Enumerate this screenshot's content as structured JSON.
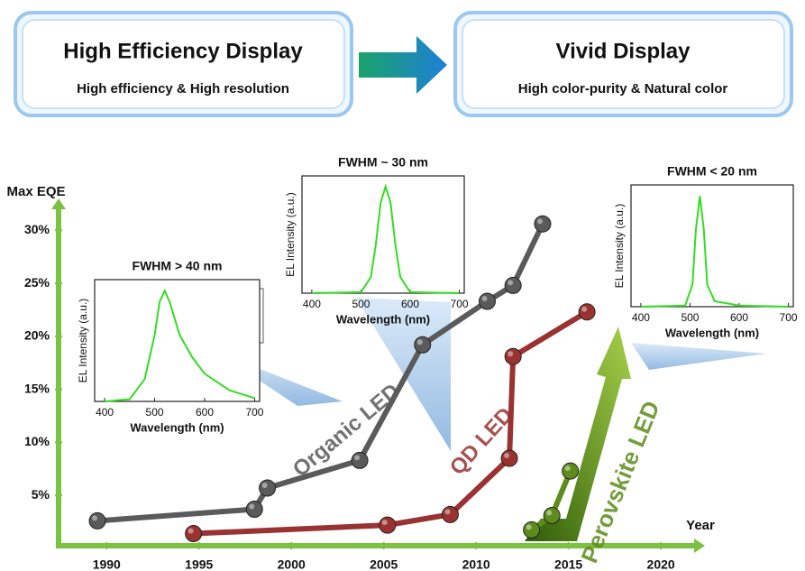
{
  "header": {
    "boxes": [
      {
        "title": "High Efficiency Display",
        "subtitle": "High efficiency & High resolution"
      },
      {
        "title": "Vivid Display",
        "subtitle": "High color-purity & Natural color"
      }
    ]
  },
  "chart_data": [
    {
      "type": "line",
      "ylabel": "Max EQE",
      "xlabel": "Year",
      "xlim": [
        1987.4,
        2021.8
      ],
      "xticks": [
        1990,
        1995,
        2000,
        2005,
        2010,
        2015,
        2020
      ],
      "ylim": [
        0,
        33
      ],
      "yticks": [
        {
          "value": 5,
          "label": "5%"
        },
        {
          "value": 10,
          "label": "10%"
        },
        {
          "value": 15,
          "label": "15%"
        },
        {
          "value": 20,
          "label": "20%"
        },
        {
          "value": 25,
          "label": "25%"
        },
        {
          "value": 30,
          "label": "30%"
        }
      ],
      "series": [
        {
          "name": "Organic LED",
          "color": "#5a5a5a",
          "x": [
            1989.5,
            1998.0,
            1998.7,
            2003.7,
            2007.1,
            2010.6,
            2012.0,
            2013.6
          ],
          "values": [
            2.6,
            3.7,
            5.7,
            8.3,
            19.2,
            23.3,
            24.8,
            30.6
          ]
        },
        {
          "name": "QD LED",
          "color": "#9b3232",
          "x": [
            1994.7,
            2005.2,
            2008.6,
            2011.8,
            2012.0,
            2016.0
          ],
          "values": [
            1.4,
            2.2,
            3.2,
            8.5,
            18.1,
            22.3
          ]
        },
        {
          "name": "Perovskite LED",
          "color": "#5d8c1c",
          "x": [
            2013.0,
            2014.1,
            2015.1
          ],
          "values": [
            1.75,
            3.1,
            7.3
          ]
        }
      ]
    },
    {
      "type": "line",
      "title": "FWHM > 40 nm",
      "xlabel": "Wavelength (nm)",
      "ylabel": "EL Intensity (a.u.)",
      "xlim": [
        380,
        710
      ],
      "xticks": [
        400,
        500,
        600,
        700
      ],
      "ylim": [
        0,
        1.1
      ],
      "color": "#33dd22",
      "x": [
        400,
        450,
        480,
        500,
        510,
        520,
        530,
        550,
        575,
        600,
        650,
        700
      ],
      "values": [
        0,
        0.02,
        0.2,
        0.6,
        0.9,
        1.0,
        0.9,
        0.6,
        0.4,
        0.25,
        0.1,
        0.03
      ]
    },
    {
      "type": "line",
      "title": "FWHM ~ 30 nm",
      "xlabel": "Wavelength (nm)",
      "ylabel": "EL Intensity (a.u.)",
      "xlim": [
        380,
        710
      ],
      "xticks": [
        400,
        500,
        600,
        700
      ],
      "ylim": [
        0,
        1.1
      ],
      "color": "#33dd22",
      "x": [
        400,
        500,
        520,
        530,
        540,
        550,
        560,
        570,
        580,
        600,
        700
      ],
      "values": [
        0,
        0.01,
        0.15,
        0.45,
        0.85,
        1.0,
        0.85,
        0.45,
        0.15,
        0.01,
        0
      ]
    },
    {
      "type": "line",
      "title": "FWHM < 20 nm",
      "xlabel": "Wavelength (nm)",
      "ylabel": "EL Intensity (a.u.)",
      "xlim": [
        380,
        710
      ],
      "xticks": [
        400,
        500,
        600,
        700
      ],
      "ylim": [
        0,
        1.1
      ],
      "color": "#33dd22",
      "x": [
        400,
        490,
        505,
        512,
        520,
        528,
        535,
        550,
        600,
        700
      ],
      "values": [
        0,
        0.01,
        0.2,
        0.7,
        1.0,
        0.7,
        0.2,
        0.05,
        0.01,
        0
      ]
    }
  ]
}
